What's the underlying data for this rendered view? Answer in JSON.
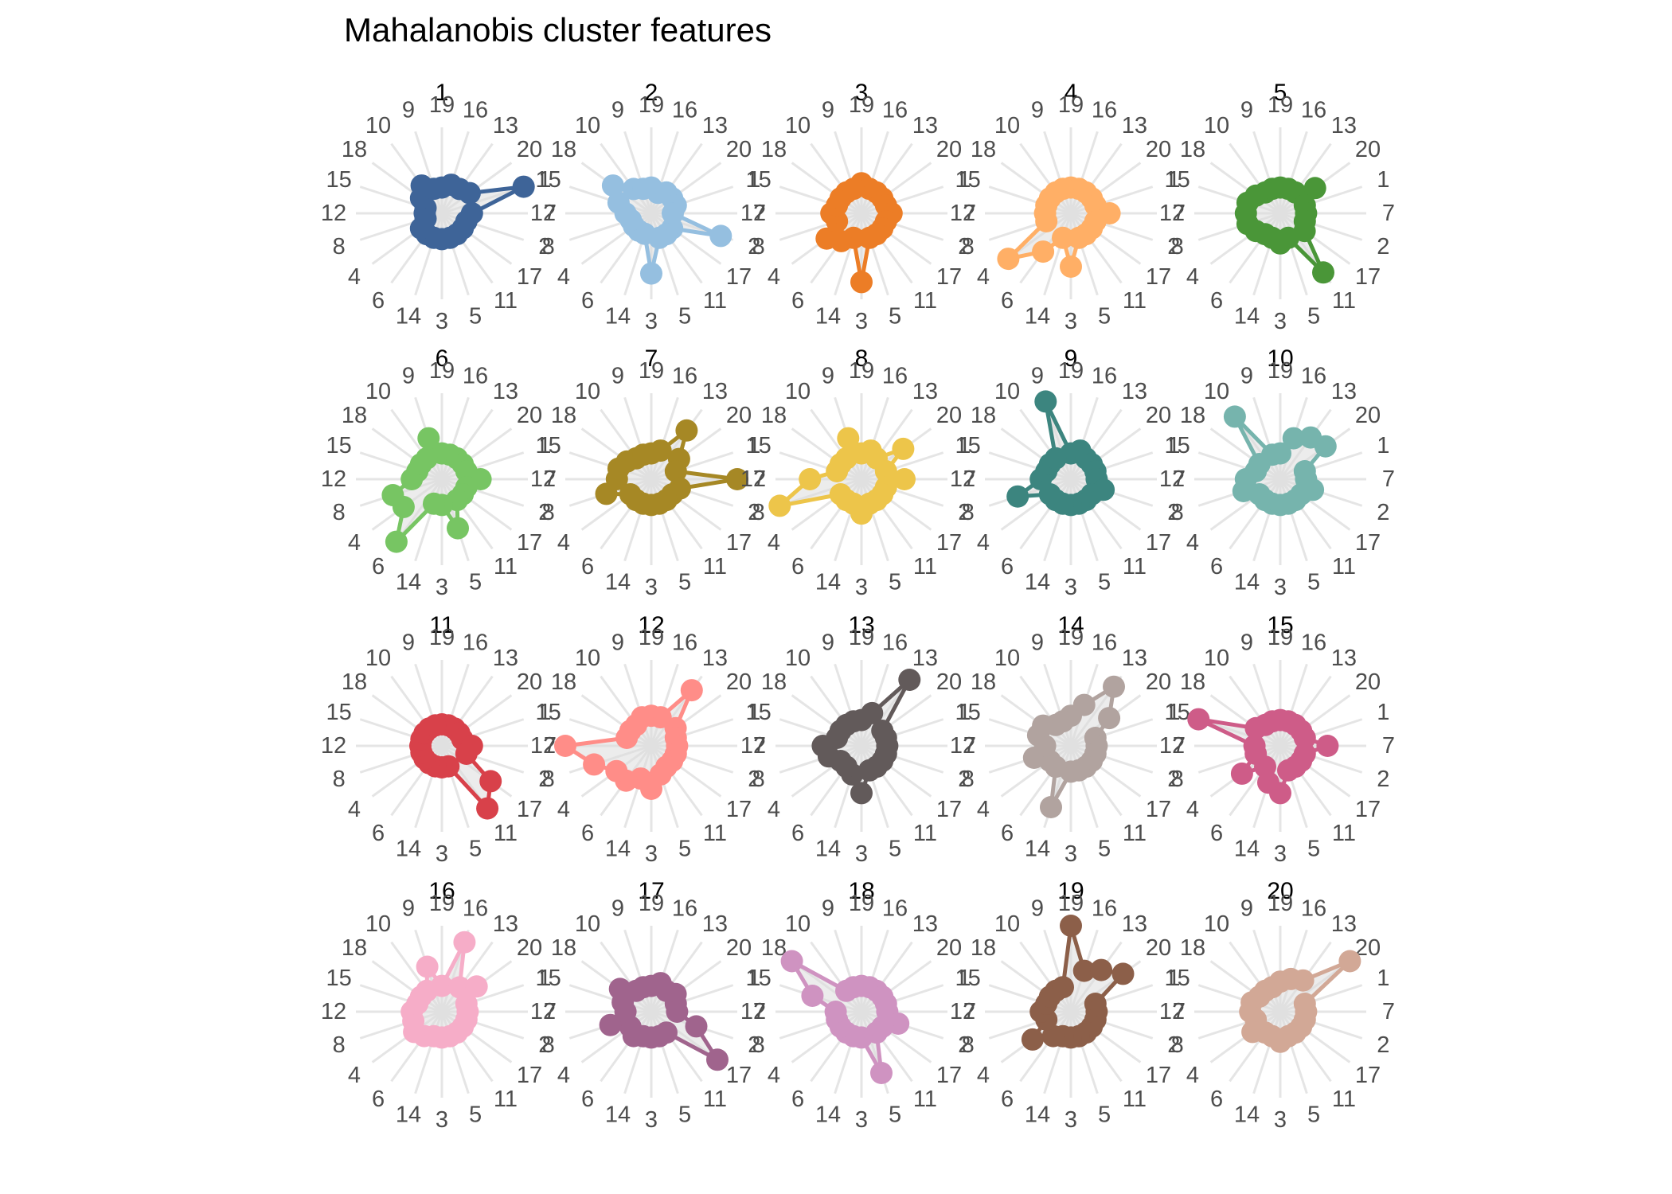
{
  "title": "Mahalanobis cluster features",
  "chart_data": {
    "type": "radar",
    "title": "Mahalanobis cluster features",
    "spoke_order": [
      19,
      16,
      13,
      20,
      1,
      7,
      2,
      17,
      11,
      5,
      3,
      14,
      6,
      4,
      8,
      12,
      15,
      18,
      10,
      9
    ],
    "rmax": 1.0,
    "grid": "radial spokes",
    "panels": [
      {
        "label": "1",
        "color": "#3E6498",
        "values": {
          "19": 0.3,
          "16": 0.35,
          "13": 0.35,
          "20": 0.4,
          "1": 1.0,
          "7": 0.35,
          "2": 0.3,
          "17": 0.3,
          "11": 0.3,
          "5": 0.3,
          "3": 0.3,
          "14": 0.3,
          "6": 0.3,
          "4": 0.3,
          "8": 0.2,
          "12": 0.2,
          "15": 0.2,
          "18": 0.3,
          "10": 0.4,
          "9": 0.3
        }
      },
      {
        "label": "2",
        "color": "#95BFE0",
        "values": {
          "19": 0.3,
          "16": 0.25,
          "13": 0.3,
          "20": 0.3,
          "1": 0.3,
          "7": 0.25,
          "2": 0.85,
          "17": 0.3,
          "11": 0.3,
          "5": 0.3,
          "3": 0.7,
          "14": 0.25,
          "6": 0.25,
          "4": 0.25,
          "8": 0.25,
          "12": 0.3,
          "15": 0.4,
          "18": 0.55,
          "10": 0.35,
          "9": 0.3
        }
      },
      {
        "label": "3",
        "color": "#EC7D26",
        "values": {
          "19": 0.35,
          "16": 0.3,
          "13": 0.3,
          "20": 0.3,
          "1": 0.3,
          "7": 0.35,
          "2": 0.3,
          "17": 0.3,
          "11": 0.3,
          "5": 0.3,
          "3": 0.8,
          "14": 0.3,
          "6": 0.4,
          "4": 0.5,
          "8": 0.3,
          "12": 0.35,
          "15": 0.3,
          "18": 0.3,
          "10": 0.3,
          "9": 0.3
        }
      },
      {
        "label": "4",
        "color": "#FFAF66",
        "values": {
          "19": 0.3,
          "16": 0.3,
          "13": 0.3,
          "20": 0.3,
          "1": 0.3,
          "7": 0.45,
          "2": 0.3,
          "17": 0.3,
          "11": 0.3,
          "5": 0.3,
          "3": 0.62,
          "14": 0.3,
          "6": 0.55,
          "4": 0.9,
          "8": 0.3,
          "12": 0.3,
          "15": 0.3,
          "18": 0.3,
          "10": 0.3,
          "9": 0.3
        }
      },
      {
        "label": "5",
        "color": "#4A9638",
        "values": {
          "19": 0.3,
          "16": 0.3,
          "13": 0.3,
          "20": 0.5,
          "1": 0.3,
          "7": 0.3,
          "2": 0.3,
          "17": 0.35,
          "11": 0.85,
          "5": 0.3,
          "3": 0.35,
          "14": 0.3,
          "6": 0.3,
          "4": 0.35,
          "8": 0.4,
          "12": 0.4,
          "15": 0.4,
          "18": 0.35,
          "10": 0.3,
          "9": 0.3
        }
      },
      {
        "label": "6",
        "color": "#77C563",
        "values": {
          "19": 0.3,
          "16": 0.3,
          "13": 0.3,
          "20": 0.3,
          "1": 0.3,
          "7": 0.45,
          "2": 0.3,
          "17": 0.3,
          "11": 0.3,
          "5": 0.6,
          "3": 0.3,
          "14": 0.3,
          "6": 0.9,
          "4": 0.55,
          "8": 0.6,
          "12": 0.35,
          "15": 0.3,
          "18": 0.3,
          "10": 0.3,
          "9": 0.5
        }
      },
      {
        "label": "7",
        "color": "#A68825",
        "values": {
          "19": 0.3,
          "16": 0.35,
          "13": 0.7,
          "20": 0.4,
          "1": 0.3,
          "7": 1.0,
          "2": 0.35,
          "17": 0.3,
          "11": 0.3,
          "5": 0.3,
          "3": 0.3,
          "14": 0.3,
          "6": 0.3,
          "4": 0.3,
          "8": 0.55,
          "12": 0.4,
          "15": 0.4,
          "18": 0.35,
          "10": 0.3,
          "9": 0.3
        }
      },
      {
        "label": "8",
        "color": "#EDC54A",
        "values": {
          "19": 0.3,
          "16": 0.35,
          "13": 0.3,
          "20": 0.6,
          "1": 0.3,
          "7": 0.5,
          "2": 0.3,
          "17": 0.3,
          "11": 0.3,
          "5": 0.3,
          "3": 0.4,
          "14": 0.3,
          "6": 0.3,
          "4": 0.3,
          "8": 1.0,
          "12": 0.6,
          "15": 0.3,
          "18": 0.3,
          "10": 0.3,
          "9": 0.5
        }
      },
      {
        "label": "9",
        "color": "#3C857F",
        "values": {
          "19": 0.3,
          "16": 0.35,
          "13": 0.3,
          "20": 0.3,
          "1": 0.3,
          "7": 0.3,
          "2": 0.4,
          "17": 0.3,
          "11": 0.3,
          "5": 0.3,
          "3": 0.3,
          "14": 0.3,
          "6": 0.3,
          "4": 0.3,
          "8": 0.65,
          "12": 0.35,
          "15": 0.3,
          "18": 0.3,
          "10": 0.3,
          "9": 0.95
        }
      },
      {
        "label": "10",
        "color": "#76B4AD",
        "values": {
          "19": 0.3,
          "16": 0.5,
          "13": 0.6,
          "20": 0.65,
          "1": 0.3,
          "7": 0.3,
          "2": 0.4,
          "17": 0.3,
          "11": 0.3,
          "5": 0.3,
          "3": 0.3,
          "14": 0.3,
          "6": 0.3,
          "4": 0.3,
          "8": 0.45,
          "12": 0.4,
          "15": 0.3,
          "18": 0.3,
          "10": 0.9,
          "9": 0.3
        }
      },
      {
        "label": "11",
        "color": "#D8414A",
        "values": {
          "19": 0.25,
          "16": 0.25,
          "13": 0.25,
          "20": 0.25,
          "1": 0.25,
          "7": 0.35,
          "2": 0.3,
          "17": 0.7,
          "11": 0.9,
          "5": 0.25,
          "3": 0.25,
          "14": 0.25,
          "6": 0.25,
          "4": 0.25,
          "8": 0.25,
          "12": 0.25,
          "15": 0.25,
          "18": 0.25,
          "10": 0.25,
          "9": 0.25
        }
      },
      {
        "label": "12",
        "color": "#FF8D88",
        "values": {
          "19": 0.35,
          "16": 0.35,
          "13": 0.8,
          "20": 0.35,
          "1": 0.3,
          "7": 0.3,
          "2": 0.3,
          "17": 0.3,
          "11": 0.3,
          "5": 0.35,
          "3": 0.5,
          "14": 0.4,
          "6": 0.5,
          "4": 0.5,
          "8": 0.7,
          "12": 1.0,
          "15": 0.3,
          "18": 0.3,
          "10": 0.3,
          "9": 0.35
        }
      },
      {
        "label": "13",
        "color": "#625A5A",
        "values": {
          "19": 0.3,
          "16": 0.4,
          "13": 0.95,
          "20": 0.3,
          "1": 0.3,
          "7": 0.3,
          "2": 0.3,
          "17": 0.3,
          "11": 0.3,
          "5": 0.3,
          "3": 0.55,
          "14": 0.35,
          "6": 0.3,
          "4": 0.3,
          "8": 0.4,
          "12": 0.45,
          "15": 0.3,
          "18": 0.3,
          "10": 0.3,
          "9": 0.3
        }
      },
      {
        "label": "14",
        "color": "#B1A39F",
        "values": {
          "19": 0.35,
          "16": 0.5,
          "13": 0.85,
          "20": 0.55,
          "1": 0.3,
          "7": 0.3,
          "2": 0.3,
          "17": 0.3,
          "11": 0.3,
          "5": 0.3,
          "3": 0.3,
          "14": 0.75,
          "6": 0.3,
          "4": 0.3,
          "8": 0.45,
          "12": 0.3,
          "15": 0.4,
          "18": 0.4,
          "10": 0.3,
          "9": 0.3
        }
      },
      {
        "label": "15",
        "color": "#CE5C88",
        "values": {
          "19": 0.3,
          "16": 0.3,
          "13": 0.3,
          "20": 0.3,
          "1": 0.3,
          "7": 0.55,
          "2": 0.3,
          "17": 0.3,
          "11": 0.3,
          "5": 0.3,
          "3": 0.55,
          "14": 0.45,
          "6": 0.3,
          "4": 0.55,
          "8": 0.3,
          "12": 0.3,
          "15": 1.0,
          "18": 0.35,
          "10": 0.3,
          "9": 0.3
        }
      },
      {
        "label": "16",
        "color": "#F6ADC8",
        "values": {
          "19": 0.3,
          "16": 0.85,
          "13": 0.35,
          "20": 0.5,
          "1": 0.3,
          "7": 0.3,
          "2": 0.3,
          "17": 0.3,
          "11": 0.3,
          "5": 0.3,
          "3": 0.3,
          "14": 0.3,
          "6": 0.35,
          "4": 0.4,
          "8": 0.35,
          "12": 0.35,
          "15": 0.3,
          "18": 0.3,
          "10": 0.3,
          "9": 0.55
        }
      },
      {
        "label": "17",
        "color": "#A0648D",
        "values": {
          "19": 0.3,
          "16": 0.35,
          "13": 0.3,
          "20": 0.35,
          "1": 0.3,
          "7": 0.3,
          "2": 0.55,
          "17": 0.95,
          "11": 0.3,
          "5": 0.3,
          "3": 0.3,
          "14": 0.3,
          "6": 0.35,
          "4": 0.3,
          "8": 0.5,
          "12": 0.3,
          "15": 0.35,
          "18": 0.45,
          "10": 0.3,
          "9": 0.3
        }
      },
      {
        "label": "18",
        "color": "#CF93C1",
        "values": {
          "19": 0.3,
          "16": 0.3,
          "13": 0.3,
          "20": 0.3,
          "1": 0.3,
          "7": 0.3,
          "2": 0.45,
          "17": 0.3,
          "11": 0.3,
          "5": 0.75,
          "3": 0.3,
          "14": 0.3,
          "6": 0.3,
          "4": 0.3,
          "8": 0.3,
          "12": 0.3,
          "15": 0.6,
          "18": 1.0,
          "10": 0.3,
          "9": 0.3
        }
      },
      {
        "label": "19",
        "color": "#8C5F49",
        "values": {
          "19": 1.0,
          "16": 0.5,
          "13": 0.6,
          "20": 0.75,
          "1": 0.3,
          "7": 0.3,
          "2": 0.3,
          "17": 0.3,
          "11": 0.3,
          "5": 0.3,
          "3": 0.3,
          "14": 0.3,
          "6": 0.35,
          "4": 0.55,
          "8": 0.3,
          "12": 0.35,
          "15": 0.3,
          "18": 0.3,
          "10": 0.3,
          "9": 0.3
        }
      },
      {
        "label": "20",
        "color": "#D2A896",
        "values": {
          "19": 0.35,
          "16": 0.4,
          "13": 0.45,
          "20": 1.0,
          "1": 0.3,
          "7": 0.3,
          "2": 0.3,
          "17": 0.3,
          "11": 0.3,
          "5": 0.3,
          "3": 0.35,
          "14": 0.3,
          "6": 0.3,
          "4": 0.4,
          "8": 0.3,
          "12": 0.35,
          "15": 0.35,
          "18": 0.3,
          "10": 0.3,
          "9": 0.3
        }
      }
    ]
  }
}
